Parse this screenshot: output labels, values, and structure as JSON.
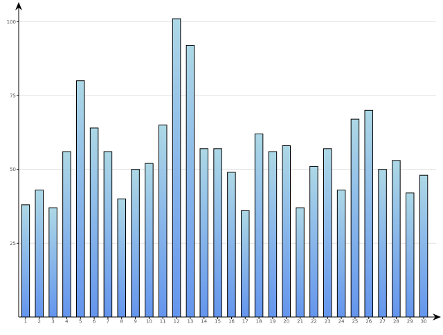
{
  "chart_data": {
    "type": "bar",
    "title": "",
    "xlabel": "",
    "ylabel": "",
    "categories": [
      "1",
      "2",
      "3",
      "4",
      "5",
      "6",
      "7",
      "8",
      "9",
      "10",
      "11",
      "12",
      "13",
      "14",
      "15",
      "16",
      "17",
      "18",
      "19",
      "20",
      "21",
      "22",
      "23",
      "24",
      "25",
      "26",
      "27",
      "28",
      "29",
      "30"
    ],
    "values": [
      38,
      43,
      37,
      56,
      80,
      64,
      56,
      40,
      50,
      52,
      65,
      101,
      92,
      57,
      57,
      49,
      36,
      62,
      56,
      58,
      37,
      51,
      57,
      43,
      67,
      70,
      50,
      53,
      42,
      48
    ],
    "ylim": [
      0,
      105
    ],
    "yticks": [
      {
        "value": 25,
        "label": "25"
      },
      {
        "value": 50,
        "label": "50"
      },
      {
        "value": 75,
        "label": "75"
      },
      {
        "value": 100,
        "label": "100"
      }
    ],
    "grid": true,
    "legend": "none",
    "colors": {
      "bar_top": "#add8e6",
      "bar_bottom": "#6495ed",
      "bar_stroke": "#000000",
      "grid": "#e0e0e0",
      "axis": "#000000"
    }
  }
}
